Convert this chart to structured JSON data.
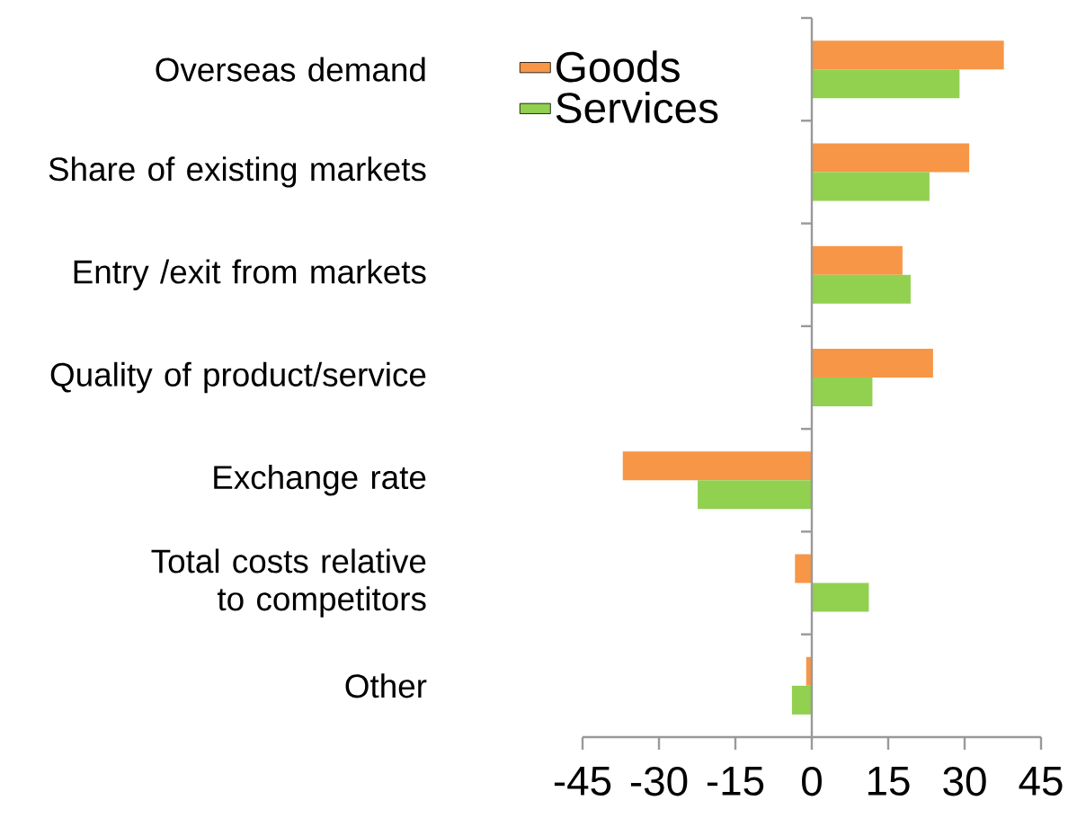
{
  "chart_data": {
    "type": "bar",
    "orientation": "horizontal",
    "categories": [
      "Overseas demand",
      "Share of existing markets",
      "Entry /exit from markets",
      "Quality of product/service",
      "Exchange rate",
      "Total costs relative to competitors",
      "Other"
    ],
    "series": [
      {
        "name": "Goods",
        "color": "#f79646",
        "values": [
          37.7,
          30.9,
          17.8,
          23.8,
          -37.1,
          -3.3,
          -1.1
        ]
      },
      {
        "name": "Services",
        "color": "#92d050",
        "values": [
          29.0,
          23.1,
          19.4,
          11.9,
          -22.4,
          11.2,
          -3.9
        ]
      }
    ],
    "xlim": [
      -45,
      45
    ],
    "xticks": [
      -45,
      -30,
      -15,
      0,
      15,
      30,
      45
    ],
    "legend": "top left"
  }
}
